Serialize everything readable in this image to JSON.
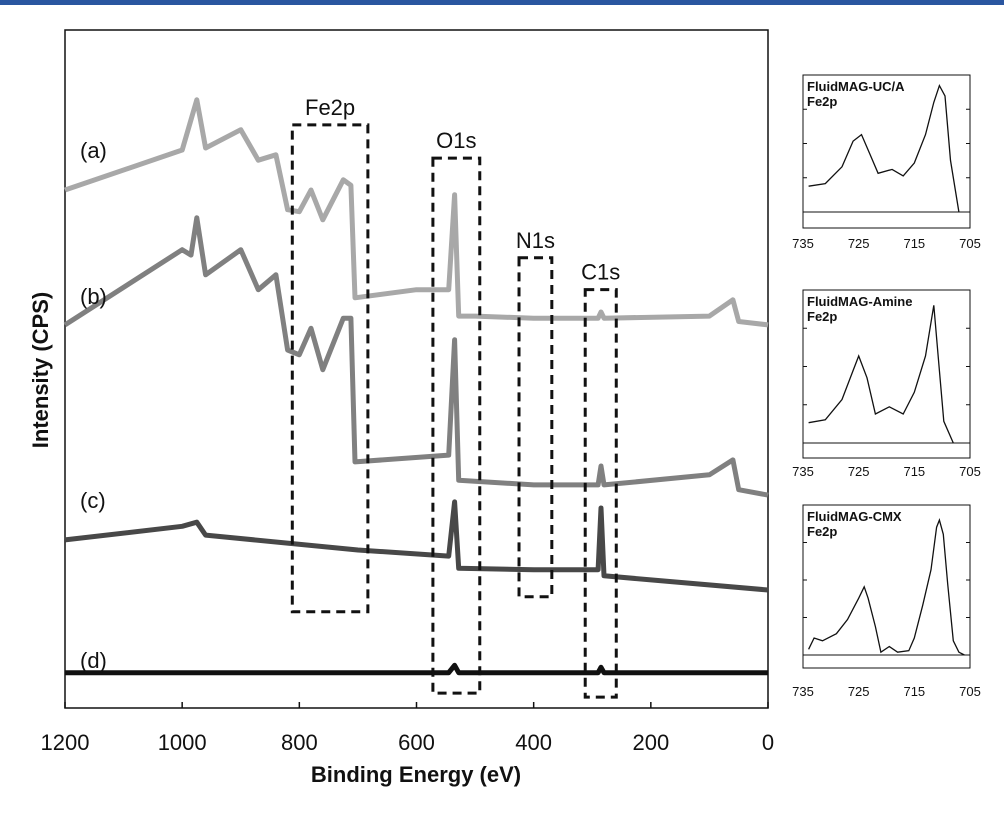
{
  "colors": {
    "top_bar": "#2a56a0",
    "a": "#a8a8a8",
    "b": "#808080",
    "c": "#484848",
    "d": "#111111"
  },
  "chart_data": [
    {
      "type": "line",
      "title": "",
      "xlabel": "Binding Energy (eV)",
      "ylabel": "Intensity (CPS)",
      "xlim": [
        1200,
        0
      ],
      "x_reversed": true,
      "ylim": [
        0,
        100
      ],
      "y_units": "arbitrary (offset spectra, no tick labels)",
      "xticks": [
        1200,
        1000,
        800,
        600,
        400,
        200,
        0
      ],
      "grid": false,
      "series": [
        {
          "name": "(a)",
          "x": [
            1200,
            1000,
            975,
            960,
            900,
            870,
            840,
            820,
            800,
            780,
            760,
            725,
            712,
            705,
            600,
            545,
            535,
            528,
            500,
            400,
            290,
            285,
            280,
            100,
            60,
            50,
            0
          ],
          "y": [
            76.4,
            82.3,
            89.7,
            82.6,
            85.3,
            80.8,
            81.6,
            73.5,
            73.2,
            76.4,
            72.0,
            77.9,
            77.1,
            60.5,
            61.7,
            61.7,
            75.7,
            57.8,
            57.8,
            57.5,
            57.5,
            58.4,
            57.5,
            57.8,
            60.2,
            57.0,
            56.5
          ]
        },
        {
          "name": "(b)",
          "x": [
            1200,
            1000,
            985,
            975,
            960,
            900,
            870,
            840,
            820,
            800,
            780,
            760,
            725,
            712,
            705,
            545,
            535,
            528,
            400,
            290,
            285,
            280,
            100,
            60,
            50,
            0
          ],
          "y": [
            56.5,
            67.6,
            66.8,
            72.3,
            63.9,
            67.6,
            61.7,
            63.9,
            52.8,
            52.1,
            56.0,
            49.9,
            57.5,
            57.5,
            36.3,
            37.3,
            54.3,
            33.6,
            32.9,
            32.9,
            35.7,
            32.9,
            34.4,
            36.6,
            32.2,
            31.4
          ]
        },
        {
          "name": "(c)",
          "x": [
            1200,
            1000,
            975,
            960,
            700,
            545,
            535,
            528,
            400,
            290,
            285,
            280,
            0
          ],
          "y": [
            24.8,
            26.8,
            27.4,
            25.5,
            23.3,
            22.4,
            30.4,
            20.6,
            20.4,
            20.4,
            29.5,
            19.5,
            17.4
          ]
        },
        {
          "name": "(d)",
          "x": [
            1200,
            545,
            535,
            528,
            290,
            285,
            280,
            0
          ],
          "y": [
            5.2,
            5.2,
            6.3,
            5.2,
            5.2,
            6.0,
            5.2,
            5.2
          ]
        }
      ],
      "regions": [
        {
          "label": "Fe2p",
          "x": [
            812,
            683
          ],
          "y": [
            14.2,
            86.0
          ]
        },
        {
          "label": "O1s",
          "x": [
            572,
            492
          ],
          "y": [
            2.2,
            81.1
          ]
        },
        {
          "label": "N1s",
          "x": [
            425,
            369
          ],
          "y": [
            16.4,
            66.4
          ]
        },
        {
          "label": "C1s",
          "x": [
            312,
            259
          ],
          "y": [
            1.6,
            61.7
          ]
        }
      ]
    },
    {
      "type": "line",
      "title": "FluidMAG-UC/A",
      "subtitle": "Fe2p",
      "xlim": [
        735,
        705
      ],
      "xticks": [
        735,
        725,
        715,
        705
      ],
      "ylim": [
        0,
        1
      ],
      "series": [
        {
          "x": [
            734,
            731,
            728,
            726,
            724.5,
            723,
            721.5,
            719,
            717,
            715,
            713,
            711.5,
            710.5,
            709.5,
            708.5,
            707
          ],
          "y": [
            0.2,
            0.22,
            0.35,
            0.55,
            0.6,
            0.45,
            0.3,
            0.33,
            0.28,
            0.38,
            0.6,
            0.85,
            0.98,
            0.9,
            0.4,
            0.0
          ]
        }
      ]
    },
    {
      "type": "line",
      "title": "FluidMAG-Amine",
      "subtitle": "Fe2p",
      "xlim": [
        735,
        705
      ],
      "xticks": [
        735,
        725,
        715,
        705
      ],
      "ylim": [
        0,
        1
      ],
      "series": [
        {
          "x": [
            734,
            731,
            728,
            726,
            725,
            723.5,
            722,
            719.5,
            717,
            715,
            713,
            711.5,
            710.5,
            709.7,
            708
          ],
          "y": [
            0.14,
            0.16,
            0.3,
            0.5,
            0.6,
            0.45,
            0.2,
            0.25,
            0.2,
            0.35,
            0.6,
            0.95,
            0.5,
            0.15,
            0.0
          ]
        }
      ]
    },
    {
      "type": "line",
      "title": "FluidMAG-CMX",
      "subtitle": "Fe2p",
      "xlim": [
        735,
        705
      ],
      "xticks": [
        735,
        725,
        715,
        705
      ],
      "ylim": [
        0,
        1
      ],
      "series": [
        {
          "x": [
            734,
            733,
            731.5,
            729,
            727,
            725,
            724,
            723.3,
            722,
            721,
            719.5,
            718,
            716,
            715,
            713.5,
            712,
            711,
            710.5,
            709.8,
            709,
            708,
            707,
            706
          ],
          "y": [
            0.04,
            0.12,
            0.1,
            0.15,
            0.25,
            0.4,
            0.48,
            0.4,
            0.2,
            0.02,
            0.06,
            0.02,
            0.03,
            0.12,
            0.35,
            0.6,
            0.9,
            0.95,
            0.85,
            0.5,
            0.1,
            0.02,
            0.0
          ]
        }
      ]
    }
  ]
}
